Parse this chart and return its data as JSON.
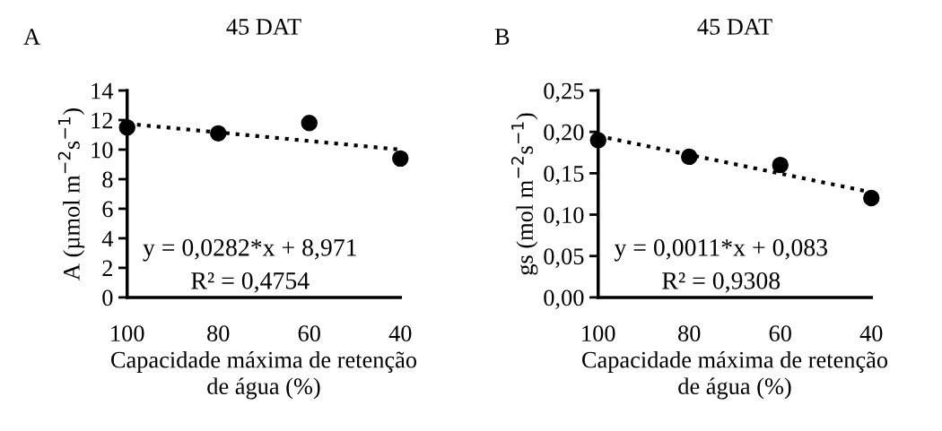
{
  "chart_data": [
    {
      "type": "scatter",
      "title": "45 DAT",
      "xlabel": "Capacidade máxima de retenção\nde água (%)",
      "ylabel": "A (µmol m$^{−2}$s$^{−1}$)",
      "annotations": [
        "A",
        "y = 0,0282*x + 8,971",
        "R² = 0,4754"
      ],
      "xlim": [
        100,
        40
      ],
      "xticks": [
        100,
        80,
        60,
        40
      ],
      "ylim": [
        0,
        14
      ],
      "yticks": [
        0,
        2,
        4,
        6,
        8,
        10,
        12,
        14
      ],
      "grid": false,
      "legend": false,
      "series": [
        {
          "marker": "circle",
          "color": "#000000",
          "x": [
            100,
            80,
            60,
            40
          ],
          "values": [
            11.5,
            11.1,
            11.8,
            9.4
          ]
        },
        {
          "type": "line",
          "color": "#000000",
          "line_style": "dotted",
          "marker": "none",
          "x": [
            100,
            40
          ],
          "values": [
            11.75,
            10.0
          ]
        }
      ]
    },
    {
      "type": "scatter",
      "title": "45 DAT",
      "xlabel": "Capacidade máxima de retenção\nde água (%)",
      "ylabel": "gs (mol m$^{−2}$s$^{−1}$)",
      "annotations": [
        "B",
        "y = 0,0011*x + 0,083",
        "R² = 0,9308"
      ],
      "xlim": [
        100,
        40
      ],
      "xticks": [
        100,
        80,
        60,
        40
      ],
      "ylim": [
        0,
        0.25
      ],
      "yticks": [
        {
          "value": 0,
          "label": "0,00"
        },
        {
          "value": 0.05,
          "label": "0,05"
        },
        {
          "value": 0.1,
          "label": "0,10"
        },
        {
          "value": 0.15,
          "label": "0,15"
        },
        {
          "value": 0.2,
          "label": "0,20"
        },
        {
          "value": 0.25,
          "label": "0,25"
        }
      ],
      "grid": false,
      "legend": false,
      "series": [
        {
          "marker": "circle",
          "color": "#000000",
          "x": [
            100,
            80,
            60,
            40
          ],
          "values": [
            0.19,
            0.17,
            0.16,
            0.12
          ]
        },
        {
          "type": "line",
          "color": "#000000",
          "line_style": "dotted",
          "marker": "none",
          "x": [
            100,
            40
          ],
          "values": [
            0.195,
            0.127
          ]
        }
      ]
    }
  ]
}
